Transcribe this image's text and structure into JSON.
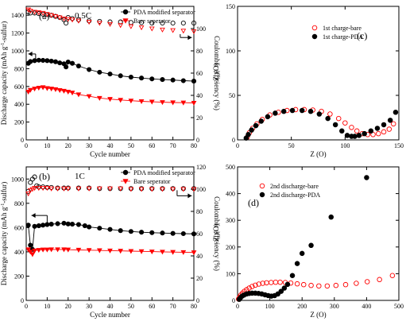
{
  "chart_data": [
    {
      "panel": "a",
      "panel_label": "(a)",
      "rate_label": "0.5C",
      "type": "scatter",
      "xlabel": "Cycle number",
      "ylabel_left_parts": [
        "Discharge capacity (mAh g",
        "-1",
        "-sulfur)"
      ],
      "ylabel_right": "Coulombic efficiency (%)",
      "xlim": [
        0,
        80
      ],
      "ylim_left": [
        0,
        1500
      ],
      "ylim_right": [
        0,
        120
      ],
      "xticks": [
        0,
        10,
        20,
        30,
        40,
        50,
        60,
        70,
        80
      ],
      "yticks_left": [
        0,
        200,
        400,
        600,
        800,
        1000,
        1200,
        1400
      ],
      "yticks_right": [
        0,
        20,
        40,
        60,
        80,
        100
      ],
      "legend": [
        {
          "name": "PDA modified separator",
          "marker": "circle",
          "color": "#000000"
        },
        {
          "name": "Bare seperator",
          "marker": "triangle-down",
          "color": "#ff0000"
        }
      ],
      "series": [
        {
          "name": "PDA modified separator",
          "quantity": "discharge capacity",
          "axis": "left",
          "marker": "circle",
          "filled": true,
          "color": "#000000",
          "x": [
            1,
            2,
            4,
            6,
            8,
            10,
            12,
            14,
            16,
            18,
            19,
            20,
            22,
            25,
            30,
            35,
            40,
            45,
            50,
            55,
            60,
            65,
            70,
            75,
            80
          ],
          "y": [
            860,
            880,
            890,
            895,
            893,
            890,
            885,
            878,
            865,
            855,
            820,
            875,
            860,
            830,
            790,
            760,
            740,
            720,
            705,
            695,
            685,
            678,
            672,
            665,
            660
          ]
        },
        {
          "name": "Bare seperator",
          "quantity": "discharge capacity",
          "axis": "left",
          "marker": "triangle-down",
          "filled": true,
          "color": "#ff0000",
          "x": [
            1,
            2,
            4,
            6,
            8,
            10,
            12,
            14,
            16,
            18,
            20,
            22,
            25,
            30,
            35,
            40,
            45,
            50,
            55,
            60,
            65,
            70,
            75,
            80
          ],
          "y": [
            540,
            560,
            575,
            585,
            590,
            580,
            575,
            568,
            558,
            550,
            540,
            530,
            510,
            490,
            470,
            458,
            448,
            440,
            433,
            428,
            423,
            420,
            418,
            415
          ]
        },
        {
          "name": "PDA modified separator",
          "quantity": "coulombic efficiency",
          "axis": "right",
          "marker": "circle",
          "filled": false,
          "color": "#000000",
          "x": [
            1,
            2,
            4,
            6,
            8,
            10,
            12,
            14,
            16,
            18,
            19,
            20,
            22,
            25,
            30,
            35,
            40,
            45,
            50,
            55,
            60,
            65,
            70,
            75,
            80
          ],
          "y": [
            115,
            114,
            114,
            113.5,
            113,
            112.5,
            112,
            111,
            110,
            108,
            105,
            110,
            109,
            108,
            107,
            106.5,
            106,
            106,
            105.5,
            105.5,
            105,
            105,
            105,
            105,
            105
          ]
        },
        {
          "name": "Bare seperator",
          "quantity": "coulombic efficiency",
          "axis": "right",
          "marker": "triangle-down",
          "filled": false,
          "color": "#ff0000",
          "x": [
            1,
            2,
            4,
            6,
            8,
            10,
            12,
            14,
            16,
            18,
            20,
            22,
            25,
            30,
            35,
            40,
            45,
            50,
            55,
            60,
            65,
            70,
            75,
            80
          ],
          "y": [
            117,
            116,
            115,
            114.5,
            114,
            113,
            112,
            111,
            110,
            109,
            108.5,
            108,
            107,
            106,
            105,
            104,
            103,
            102,
            101,
            100,
            99,
            98.5,
            98,
            97.5
          ]
        }
      ],
      "annotations": [
        {
          "kind": "arrow",
          "direction": "left",
          "x": 4.5,
          "y": 965,
          "to_x": 1,
          "to_y": 965,
          "drop_to_y": 900,
          "axis": "left"
        },
        {
          "kind": "arrow",
          "direction": "right",
          "x": 73.5,
          "y": 92,
          "to_x": 79,
          "to_y": 92,
          "drop_to_y": 95,
          "axis": "right"
        }
      ]
    },
    {
      "panel": "b",
      "panel_label": "(b)",
      "rate_label": "1C",
      "type": "scatter",
      "xlabel": "Cycle number",
      "ylabel_left_parts": [
        "Discharge capacity (mAh g",
        "-1",
        "-sulfur)"
      ],
      "ylabel_right": "Coulombic efficiency (%)",
      "xlim": [
        0,
        80
      ],
      "ylim_left": [
        0,
        1100
      ],
      "ylim_right": [
        0,
        120
      ],
      "xticks": [
        0,
        10,
        20,
        30,
        40,
        50,
        60,
        70,
        80
      ],
      "yticks_left": [
        0,
        200,
        400,
        600,
        800,
        1000
      ],
      "yticks_right": [
        0,
        20,
        40,
        60,
        80,
        100,
        120
      ],
      "legend": [
        {
          "name": "PDA modified separator",
          "marker": "circle",
          "color": "#000000"
        },
        {
          "name": "Bare seperator",
          "marker": "triangle-down",
          "color": "#ff0000"
        }
      ],
      "series": [
        {
          "name": "PDA modified separator",
          "quantity": "discharge capacity",
          "axis": "left",
          "marker": "circle",
          "filled": true,
          "color": "#000000",
          "x": [
            1,
            2,
            3,
            4,
            6,
            8,
            10,
            12,
            15,
            18,
            20,
            22,
            25,
            28,
            30,
            35,
            40,
            45,
            50,
            55,
            60,
            65,
            70,
            75,
            80
          ],
          "y": [
            620,
            455,
            420,
            610,
            615,
            620,
            625,
            628,
            632,
            636,
            630,
            628,
            625,
            615,
            605,
            595,
            585,
            575,
            568,
            562,
            558,
            555,
            552,
            550,
            548
          ]
        },
        {
          "name": "Bare seperator",
          "quantity": "discharge capacity",
          "axis": "left",
          "marker": "triangle-down",
          "filled": true,
          "color": "#ff0000",
          "x": [
            1,
            2,
            3,
            4,
            6,
            8,
            10,
            12,
            15,
            18,
            20,
            25,
            30,
            35,
            40,
            45,
            50,
            55,
            60,
            65,
            70,
            75,
            80
          ],
          "y": [
            420,
            400,
            380,
            410,
            415,
            418,
            418,
            420,
            420,
            420,
            418,
            416,
            414,
            412,
            410,
            408,
            406,
            404,
            402,
            400,
            398,
            397,
            395
          ]
        },
        {
          "name": "PDA modified separator",
          "quantity": "coulombic efficiency",
          "axis": "right",
          "marker": "circle",
          "filled": false,
          "color": "#000000",
          "x": [
            1,
            2,
            3,
            4,
            5,
            6,
            8,
            10,
            12,
            15,
            18,
            20,
            25,
            30,
            35,
            40,
            45,
            50,
            55,
            60,
            65,
            70,
            75,
            80
          ],
          "y": [
            98,
            106,
            109,
            111,
            103,
            102,
            102,
            101.5,
            101.5,
            101,
            101,
            101,
            101,
            101,
            100.5,
            100.5,
            100.5,
            100.5,
            100.5,
            100.5,
            100.5,
            100.5,
            100.5,
            100.5
          ]
        },
        {
          "name": "Bare seperator",
          "quantity": "coulombic efficiency",
          "axis": "right",
          "marker": "triangle-down",
          "filled": false,
          "color": "#ff0000",
          "x": [
            1,
            2,
            3,
            4,
            6,
            8,
            10,
            12,
            15,
            18,
            20,
            25,
            30,
            35,
            40,
            45,
            50,
            55,
            60,
            65,
            70,
            75,
            80
          ],
          "y": [
            96,
            99,
            100,
            101,
            101,
            101,
            101,
            100.5,
            100.5,
            100.5,
            100.5,
            100.5,
            100.5,
            100.5,
            100.5,
            100.5,
            100,
            100,
            100,
            100,
            100,
            100,
            100
          ]
        }
      ],
      "annotations": [
        {
          "kind": "arrow",
          "direction": "left",
          "x": 10,
          "y": 700,
          "to_x": 2.5,
          "to_y": 700,
          "drop_to_y": 635,
          "axis": "left"
        },
        {
          "kind": "arrow",
          "direction": "right",
          "x": 72,
          "y": 94,
          "to_x": 79,
          "to_y": 94,
          "drop_to_y": 99,
          "axis": "right"
        }
      ]
    },
    {
      "panel": "c",
      "panel_label": "(c)",
      "type": "scatter",
      "xlabel": "Z (O)",
      "ylabel": "-Z' (O)",
      "xlim": [
        0,
        150
      ],
      "ylim": [
        0,
        150
      ],
      "xticks": [
        0,
        50,
        100,
        150
      ],
      "yticks": [
        0,
        50,
        100,
        150
      ],
      "legend": [
        {
          "name": "1st charge-bare",
          "marker": "circle",
          "filled": false,
          "color": "#ff0000"
        },
        {
          "name": "1st charge-PDA",
          "marker": "circle",
          "filled": true,
          "color": "#000000"
        }
      ],
      "series": [
        {
          "name": "1st charge-bare",
          "marker": "circle",
          "filled": false,
          "color": "#ff0000",
          "x": [
            9,
            11,
            14,
            18,
            23,
            30,
            38,
            46,
            54,
            62,
            70,
            78,
            86,
            94,
            100,
            106,
            111,
            116,
            121,
            126,
            131,
            136,
            141,
            145
          ],
          "y": [
            3,
            8,
            13,
            18,
            23,
            28,
            31,
            33,
            34,
            34,
            33.5,
            32,
            29,
            24,
            19,
            14,
            10,
            7,
            6,
            6,
            7,
            9,
            12,
            18
          ]
        },
        {
          "name": "1st charge-PDA",
          "marker": "circle",
          "filled": true,
          "color": "#000000",
          "x": [
            8,
            10,
            13,
            17,
            22,
            28,
            35,
            43,
            51,
            60,
            68,
            76,
            84,
            91,
            97,
            102,
            106,
            109,
            113,
            118,
            124,
            130,
            136,
            142,
            147
          ],
          "y": [
            2,
            6,
            11,
            16,
            21,
            26,
            30,
            32,
            33,
            33,
            32,
            29,
            24,
            17,
            10,
            5,
            4,
            4,
            5,
            7,
            10,
            13,
            17,
            22,
            31
          ]
        }
      ]
    },
    {
      "panel": "d",
      "panel_label": "(d)",
      "type": "scatter",
      "xlabel": "Z (O)",
      "ylabel": "-Z' (O)",
      "xlim": [
        0,
        500
      ],
      "ylim": [
        0,
        500
      ],
      "xticks": [
        0,
        100,
        200,
        300,
        400,
        500
      ],
      "yticks": [
        0,
        100,
        200,
        300,
        400,
        500
      ],
      "legend": [
        {
          "name": "2nd discharge-bare",
          "marker": "circle",
          "filled": false,
          "color": "#ff0000"
        },
        {
          "name": "2nd discharge-PDA",
          "marker": "circle",
          "filled": true,
          "color": "#000000"
        }
      ],
      "series": [
        {
          "name": "2nd discharge-bare",
          "marker": "circle",
          "filled": false,
          "color": "#ff0000",
          "x": [
            3,
            6,
            10,
            15,
            21,
            28,
            36,
            45,
            55,
            66,
            78,
            90,
            104,
            118,
            132,
            148,
            165,
            185,
            205,
            228,
            252,
            278,
            305,
            335,
            368,
            402,
            440,
            480
          ],
          "y": [
            5,
            12,
            20,
            27,
            34,
            40,
            46,
            52,
            57,
            61,
            64,
            66,
            67,
            68,
            68,
            67,
            65,
            62,
            59,
            56,
            54,
            54,
            56,
            59,
            64,
            70,
            78,
            93
          ]
        },
        {
          "name": "2nd discharge-PDA",
          "marker": "circle",
          "filled": true,
          "color": "#000000",
          "x": [
            5,
            9,
            14,
            20,
            28,
            36,
            45,
            55,
            65,
            75,
            85,
            95,
            105,
            115,
            125,
            135,
            145,
            155,
            170,
            185,
            200,
            228,
            290,
            400
          ],
          "y": [
            4,
            10,
            16,
            20,
            24,
            26,
            27,
            27,
            26,
            24,
            21,
            18,
            16,
            18,
            24,
            34,
            46,
            60,
            93,
            138,
            176,
            206,
            312,
            460
          ]
        }
      ]
    }
  ]
}
